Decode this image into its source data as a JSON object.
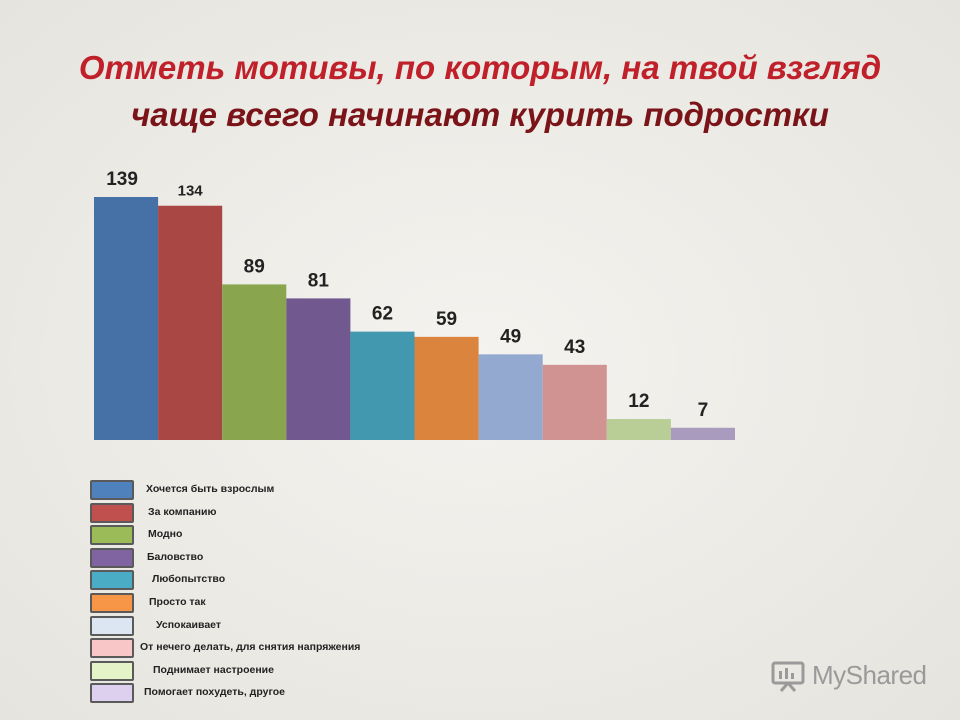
{
  "title": {
    "line1": "Отметь мотивы, по которым, на твой взгляд",
    "line2": "чаще всего начинают курить подростки"
  },
  "chart_data": {
    "type": "bar",
    "title": "Отметь мотивы, по которым, на твой взгляд чаще всего начинают курить подростки",
    "categories": [
      "Хочется быть взрослым",
      "За компанию",
      "Модно",
      "Баловство",
      "Любопытство",
      "Просто так",
      "Успокаивает",
      "От нечего делать, для снятия напряжения",
      "Поднимает настроение",
      "Помогает похудеть, другое"
    ],
    "values": [
      139,
      134,
      89,
      81,
      62,
      59,
      49,
      43,
      12,
      7
    ],
    "labels": [
      "139",
      "134",
      "89",
      "81",
      "62",
      "59",
      "49",
      "43",
      "12",
      "7"
    ],
    "bar_colors": [
      "#4571a6",
      "#a84744",
      "#89a54e",
      "#71588f",
      "#4198af",
      "#db843d",
      "#93a9cf",
      "#d19392",
      "#b9cd96",
      "#a99bbd"
    ],
    "legend_colors": [
      "#4f81bd",
      "#c0504d",
      "#9bbb59",
      "#8064a2",
      "#4bacc6",
      "#f79646",
      "#dce6f2",
      "#f8c6c6",
      "#e4f4c8",
      "#ddd0ef"
    ],
    "xlabel": "",
    "ylabel": "",
    "ylim": [
      0,
      139
    ],
    "grid": false,
    "legend_position": "bottom-left"
  },
  "logo": {
    "text": "MyShared"
  },
  "colors": {
    "title": "#c0202a",
    "title_line2": "#7a1418",
    "logo": "#9a9a9a"
  }
}
